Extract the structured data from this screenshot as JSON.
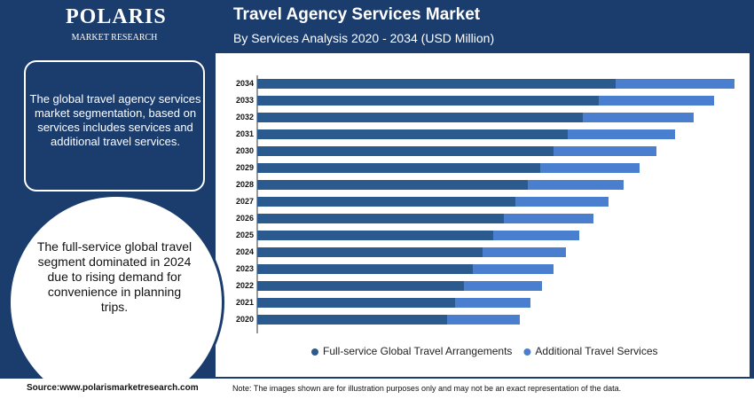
{
  "header": {
    "logo": "POLARIS",
    "logo_sub": "MARKET RESEARCH"
  },
  "panel": {
    "text_top": "The global travel agency services market segmentation, based on services includes services and additional travel services.",
    "text_circle": "The full-service global travel segment dominated in 2024 due to rising demand for convenience in planning trips."
  },
  "footer": {
    "source": "Source:www.polarismarketresearch.com",
    "note": "Note: The images shown are for illustration purposes only and may not be an exact representation of the data."
  },
  "chart_data": {
    "type": "stacked-barh",
    "title": "Travel Agency Services Market",
    "subtitle": "By Services Analysis 2020 - 2034 (USD Million)",
    "categories": [
      "2020",
      "2021",
      "2022",
      "2023",
      "2024",
      "2025",
      "2026",
      "2027",
      "2028",
      "2029",
      "2030",
      "2031",
      "2032",
      "2033",
      "2034"
    ],
    "series": [
      {
        "name": "Full-service Global Travel Arrangements",
        "color": "#2b5b8e",
        "values": [
          214,
          223,
          233,
          243,
          254,
          266,
          278,
          291,
          305,
          319,
          334,
          350,
          367,
          385,
          404
        ]
      },
      {
        "name": "Additional Travel Services",
        "color": "#4a7fd0",
        "values": [
          82,
          85,
          88,
          91,
          94,
          97,
          101,
          105,
          108,
          112,
          116,
          121,
          125,
          130,
          134
        ]
      }
    ]
  }
}
